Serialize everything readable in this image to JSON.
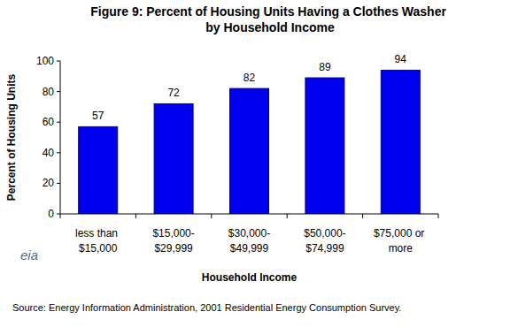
{
  "chart_data": {
    "type": "bar",
    "title": "Figure 9:  Percent of Housing Units Having a Clothes Washer by Household Income",
    "x_label": "Household Income",
    "y_label": "Percent of Housing Units",
    "categories": [
      "less than $15,000",
      "$15,000-$29,999",
      "$30,000-$49,999",
      "$50,000-$74,999",
      "$75,000 or more"
    ],
    "values": [
      57,
      72,
      82,
      89,
      94
    ],
    "color": "#0000ee",
    "ylim": [
      0,
      100
    ],
    "yticks": [
      0,
      20,
      40,
      60,
      80,
      100
    ],
    "grid": false,
    "data_labels": true,
    "source": "Source:  Energy Information Administration, 2001 Residential Energy Consumption Survey.",
    "logo": "eia"
  }
}
